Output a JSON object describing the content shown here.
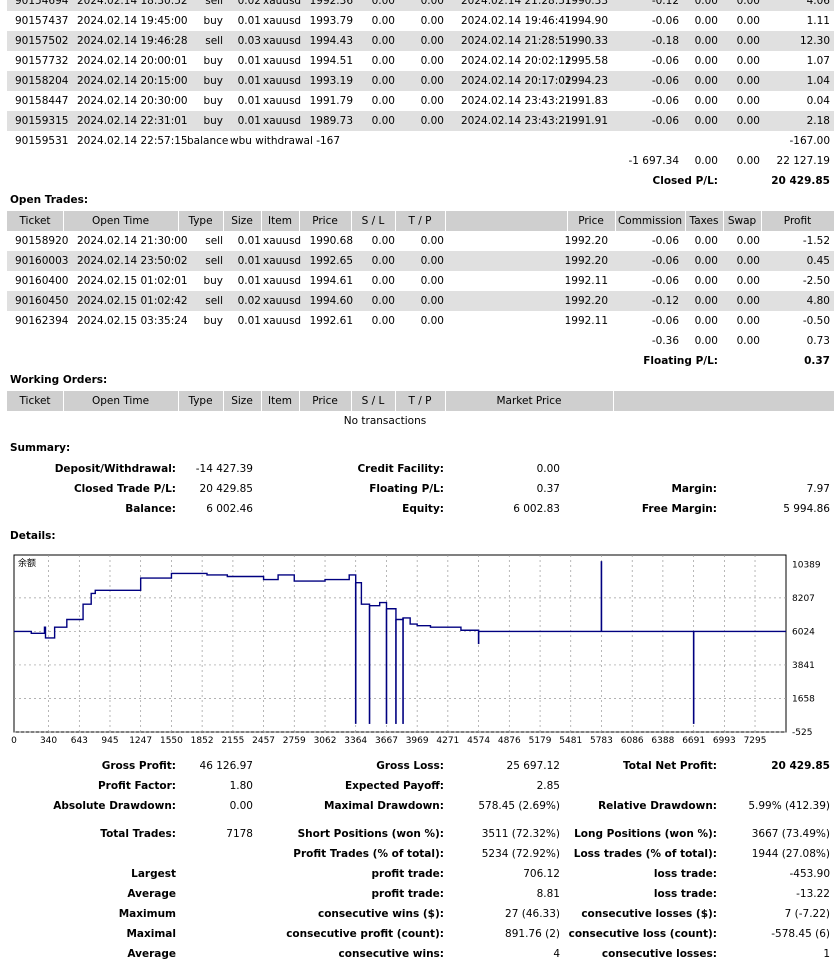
{
  "closed_rows": [
    {
      "ticket": "90154694",
      "open_time": "2024.02.14 18:30:52",
      "type": "sell",
      "size": "0.02",
      "item": "xauusd",
      "price": "1992.36",
      "sl": "0.00",
      "tp": "0.00",
      "close_time": "2024.02.14 21:28:51",
      "close_price": "1990.33",
      "commission": "-0.12",
      "taxes": "0.00",
      "swap": "0.00",
      "profit": "4.06"
    },
    {
      "ticket": "90157437",
      "open_time": "2024.02.14 19:45:00",
      "type": "buy",
      "size": "0.01",
      "item": "xauusd",
      "price": "1993.79",
      "sl": "0.00",
      "tp": "0.00",
      "close_time": "2024.02.14 19:46:41",
      "close_price": "1994.90",
      "commission": "-0.06",
      "taxes": "0.00",
      "swap": "0.00",
      "profit": "1.11"
    },
    {
      "ticket": "90157502",
      "open_time": "2024.02.14 19:46:28",
      "type": "sell",
      "size": "0.03",
      "item": "xauusd",
      "price": "1994.43",
      "sl": "0.00",
      "tp": "0.00",
      "close_time": "2024.02.14 21:28:51",
      "close_price": "1990.33",
      "commission": "-0.18",
      "taxes": "0.00",
      "swap": "0.00",
      "profit": "12.30"
    },
    {
      "ticket": "90157732",
      "open_time": "2024.02.14 20:00:01",
      "type": "buy",
      "size": "0.01",
      "item": "xauusd",
      "price": "1994.51",
      "sl": "0.00",
      "tp": "0.00",
      "close_time": "2024.02.14 20:02:12",
      "close_price": "1995.58",
      "commission": "-0.06",
      "taxes": "0.00",
      "swap": "0.00",
      "profit": "1.07"
    },
    {
      "ticket": "90158204",
      "open_time": "2024.02.14 20:15:00",
      "type": "buy",
      "size": "0.01",
      "item": "xauusd",
      "price": "1993.19",
      "sl": "0.00",
      "tp": "0.00",
      "close_time": "2024.02.14 20:17:02",
      "close_price": "1994.23",
      "commission": "-0.06",
      "taxes": "0.00",
      "swap": "0.00",
      "profit": "1.04"
    },
    {
      "ticket": "90158447",
      "open_time": "2024.02.14 20:30:00",
      "type": "buy",
      "size": "0.01",
      "item": "xauusd",
      "price": "1991.79",
      "sl": "0.00",
      "tp": "0.00",
      "close_time": "2024.02.14 23:43:21",
      "close_price": "1991.83",
      "commission": "-0.06",
      "taxes": "0.00",
      "swap": "0.00",
      "profit": "0.04"
    },
    {
      "ticket": "90159315",
      "open_time": "2024.02.14 22:31:01",
      "type": "buy",
      "size": "0.01",
      "item": "xauusd",
      "price": "1989.73",
      "sl": "0.00",
      "tp": "0.00",
      "close_time": "2024.02.14 23:43:21",
      "close_price": "1991.91",
      "commission": "-0.06",
      "taxes": "0.00",
      "swap": "0.00",
      "profit": "2.18"
    }
  ],
  "balance_row": {
    "ticket": "90159531",
    "open_time": "2024.02.14 22:57:15",
    "type": "balance",
    "comment": "wbu withdrawal -167",
    "profit": "-167.00"
  },
  "closed_totals": {
    "commission": "-1 697.34",
    "taxes": "0.00",
    "swap": "0.00",
    "profit": "22 127.19",
    "pl_label": "Closed P/L:",
    "pl_value": "20 429.85"
  },
  "open_title": "Open Trades:",
  "open_headers": {
    "ticket": "Ticket",
    "open_time": "Open Time",
    "type": "Type",
    "size": "Size",
    "item": "Item",
    "price": "Price",
    "sl": "S / L",
    "tp": "T / P",
    "mprice": "Price",
    "commission": "Commission",
    "taxes": "Taxes",
    "swap": "Swap",
    "profit": "Profit"
  },
  "open_rows": [
    {
      "ticket": "90158920",
      "open_time": "2024.02.14 21:30:00",
      "type": "sell",
      "size": "0.01",
      "item": "xauusd",
      "price": "1990.68",
      "sl": "0.00",
      "tp": "0.00",
      "mprice": "1992.20",
      "commission": "-0.06",
      "taxes": "0.00",
      "swap": "0.00",
      "profit": "-1.52"
    },
    {
      "ticket": "90160003",
      "open_time": "2024.02.14 23:50:02",
      "type": "sell",
      "size": "0.01",
      "item": "xauusd",
      "price": "1992.65",
      "sl": "0.00",
      "tp": "0.00",
      "mprice": "1992.20",
      "commission": "-0.06",
      "taxes": "0.00",
      "swap": "0.00",
      "profit": "0.45"
    },
    {
      "ticket": "90160400",
      "open_time": "2024.02.15 01:02:01",
      "type": "buy",
      "size": "0.01",
      "item": "xauusd",
      "price": "1994.61",
      "sl": "0.00",
      "tp": "0.00",
      "mprice": "1992.11",
      "commission": "-0.06",
      "taxes": "0.00",
      "swap": "0.00",
      "profit": "-2.50"
    },
    {
      "ticket": "90160450",
      "open_time": "2024.02.15 01:02:42",
      "type": "sell",
      "size": "0.02",
      "item": "xauusd",
      "price": "1994.60",
      "sl": "0.00",
      "tp": "0.00",
      "mprice": "1992.20",
      "commission": "-0.12",
      "taxes": "0.00",
      "swap": "0.00",
      "profit": "4.80"
    },
    {
      "ticket": "90162394",
      "open_time": "2024.02.15 03:35:24",
      "type": "buy",
      "size": "0.01",
      "item": "xauusd",
      "price": "1992.61",
      "sl": "0.00",
      "tp": "0.00",
      "mprice": "1992.11",
      "commission": "-0.06",
      "taxes": "0.00",
      "swap": "0.00",
      "profit": "-0.50"
    }
  ],
  "open_totals": {
    "commission": "-0.36",
    "taxes": "0.00",
    "swap": "0.00",
    "profit": "0.73",
    "pl_label": "Floating P/L:",
    "pl_value": "0.37"
  },
  "working_title": "Working Orders:",
  "working_headers": {
    "ticket": "Ticket",
    "open_time": "Open Time",
    "type": "Type",
    "size": "Size",
    "item": "Item",
    "price": "Price",
    "sl": "S / L",
    "tp": "T / P",
    "market_price": "Market Price"
  },
  "working_empty": "No transactions",
  "summary": {
    "title": "Summary:",
    "deposit_label": "Deposit/Withdrawal:",
    "deposit_value": "-14 427.39",
    "credit_label": "Credit Facility:",
    "credit_value": "0.00",
    "closed_label": "Closed Trade P/L:",
    "closed_value": "20 429.85",
    "floating_label": "Floating P/L:",
    "floating_value": "0.37",
    "margin_label": "Margin:",
    "margin_value": "7.97",
    "balance_label": "Balance:",
    "balance_value": "6 002.46",
    "equity_label": "Equity:",
    "equity_value": "6 002.83",
    "free_margin_label": "Free Margin:",
    "free_margin_value": "5 994.86"
  },
  "details_title": "Details:",
  "chart_data": {
    "type": "line",
    "series": [
      {
        "name": "余额"
      }
    ],
    "x_ticks": [
      "0",
      "340",
      "643",
      "945",
      "1247",
      "1550",
      "1852",
      "2155",
      "2457",
      "2759",
      "3062",
      "3364",
      "3667",
      "3969",
      "4271",
      "4574",
      "4876",
      "5179",
      "5481",
      "5783",
      "6086",
      "6388",
      "6691",
      "6993",
      "7295"
    ],
    "y_ticks": [
      "10389",
      "8207",
      "6024",
      "3841",
      "1658",
      "-525"
    ],
    "xlim": [
      0,
      7600
    ],
    "ylim": [
      -525,
      11000
    ],
    "grid": true,
    "line_color": "#000080",
    "x": [
      0,
      170,
      300,
      310,
      400,
      520,
      680,
      760,
      800,
      1247,
      1550,
      1900,
      2100,
      2457,
      2600,
      2759,
      3062,
      3300,
      3364,
      3420,
      3500,
      3600,
      3667,
      3760,
      3830,
      3900,
      3969,
      4100,
      4271,
      4400,
      4574,
      4876,
      5179,
      5481,
      5783,
      6086,
      6388,
      6691,
      6993,
      7295,
      7600
    ],
    "y": [
      6024,
      5900,
      6300,
      5600,
      6300,
      6800,
      7800,
      8500,
      8700,
      9500,
      9800,
      9700,
      9600,
      9400,
      9700,
      9300,
      9400,
      9700,
      9200,
      7800,
      7700,
      7900,
      7500,
      6800,
      6900,
      6500,
      6400,
      6300,
      6300,
      6100,
      6024,
      6024,
      6024,
      6024,
      6024,
      6024,
      6024,
      6024,
      6024,
      6024,
      6024
    ],
    "spikes": [
      {
        "x": 3364,
        "y": 0
      },
      {
        "x": 3500,
        "y": 0
      },
      {
        "x": 3667,
        "y": 0
      },
      {
        "x": 3760,
        "y": 0
      },
      {
        "x": 3830,
        "y": 0
      },
      {
        "x": 4574,
        "y": 5200
      },
      {
        "x": 5783,
        "y": 10600
      },
      {
        "x": 6691,
        "y": 0
      }
    ]
  },
  "stats": {
    "gross_profit_label": "Gross Profit:",
    "gross_profit_value": "46 126.97",
    "gross_loss_label": "Gross Loss:",
    "gross_loss_value": "25 697.12",
    "net_profit_label": "Total Net Profit:",
    "net_profit_value": "20 429.85",
    "profit_factor_label": "Profit Factor:",
    "profit_factor_value": "1.80",
    "expected_payoff_label": "Expected Payoff:",
    "expected_payoff_value": "2.85",
    "abs_dd_label": "Absolute Drawdown:",
    "abs_dd_value": "0.00",
    "max_dd_label": "Maximal Drawdown:",
    "max_dd_value": "578.45 (2.69%)",
    "rel_dd_label": "Relative Drawdown:",
    "rel_dd_value": "5.99% (412.39)",
    "total_trades_label": "Total Trades:",
    "total_trades_value": "7178",
    "short_label": "Short Positions (won %):",
    "short_value": "3511 (72.32%)",
    "long_label": "Long Positions (won %):",
    "long_value": "3667 (73.49%)",
    "profit_trades_label": "Profit Trades (% of total):",
    "profit_trades_value": "5234 (72.92%)",
    "loss_trades_label": "Loss trades (% of total):",
    "loss_trades_value": "1944 (27.08%)",
    "largest_label": "Largest",
    "largest_profit_label": "profit trade:",
    "largest_profit_value": "706.12",
    "largest_loss_label": "loss trade:",
    "largest_loss_value": "-453.90",
    "average_label": "Average",
    "average_profit_label": "profit trade:",
    "average_profit_value": "8.81",
    "average_loss_label": "loss trade:",
    "average_loss_value": "-13.22",
    "maximum_label": "Maximum",
    "max_wins_label": "consecutive wins ($):",
    "max_wins_value": "27 (46.33)",
    "max_losses_label": "consecutive losses ($):",
    "max_losses_value": "7 (-7.22)",
    "maximal_label": "Maximal",
    "maximal_profit_label": "consecutive profit (count):",
    "maximal_profit_value": "891.76 (2)",
    "maximal_loss_label": "consecutive loss (count):",
    "maximal_loss_value": "-578.45 (6)",
    "average2_label": "Average",
    "avg_cons_wins_label": "consecutive wins:",
    "avg_cons_wins_value": "4",
    "avg_cons_losses_label": "consecutive losses:",
    "avg_cons_losses_value": "1"
  }
}
